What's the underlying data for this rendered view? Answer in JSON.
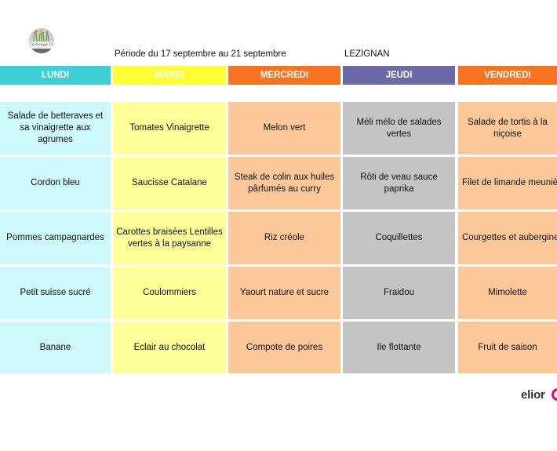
{
  "header": {
    "logo_text": "Ça bouge Cuisine",
    "period": "Période du 17 septembre au 21 septembre",
    "location": "LEZIGNAN"
  },
  "colors": {
    "lundi_header": "#3ecfd4",
    "mardi_header": "#ffff33",
    "mercredi_header": "#f7731f",
    "jeudi_header": "#6b6aa6",
    "vendredi_header": "#f7731f",
    "lundi_cells": "#cdf8fc",
    "mardi_cells": "#ffff99",
    "mercredi_cells": "#fcc799",
    "jeudi_cells": "#c4c4c4",
    "vendredi_cells": "#fcc799",
    "brand": "#e6007e"
  },
  "days": [
    {
      "name": "LUNDI",
      "items": [
        "Salade de betteraves et sa vinaigrette aux agrumes",
        "Cordon bleu",
        "Pommes campagnardes",
        "Petit suisse sucré",
        "Banane"
      ]
    },
    {
      "name": "MARDI",
      "items": [
        "Tomates Vinaigrette",
        "Saucisse Catalane",
        "Carottes braisées Lentilles vertes à la paysanne",
        "Coulommiers",
        "Eclair au chocolat"
      ]
    },
    {
      "name": "MERCREDI",
      "items": [
        "Melon vert",
        "Steak de colin aux huiles pârfumés au curry",
        "Riz créole",
        "Yaourt nature et sucre",
        "Compote de poires"
      ]
    },
    {
      "name": "JEUDI",
      "items": [
        "Méli mélo de salades vertes",
        "Rôti de veau sauce paprika",
        "Coquillettes",
        "Fraidou",
        "Ile flottante"
      ]
    },
    {
      "name": "VENDREDI",
      "items": [
        "Salade de tortis à la niçoise",
        "Filet de limande meunière",
        "Courgettes et aubergines al pesto",
        "Mimolette",
        "Fruit de saison"
      ]
    }
  ],
  "footer": {
    "brand": "elior"
  }
}
